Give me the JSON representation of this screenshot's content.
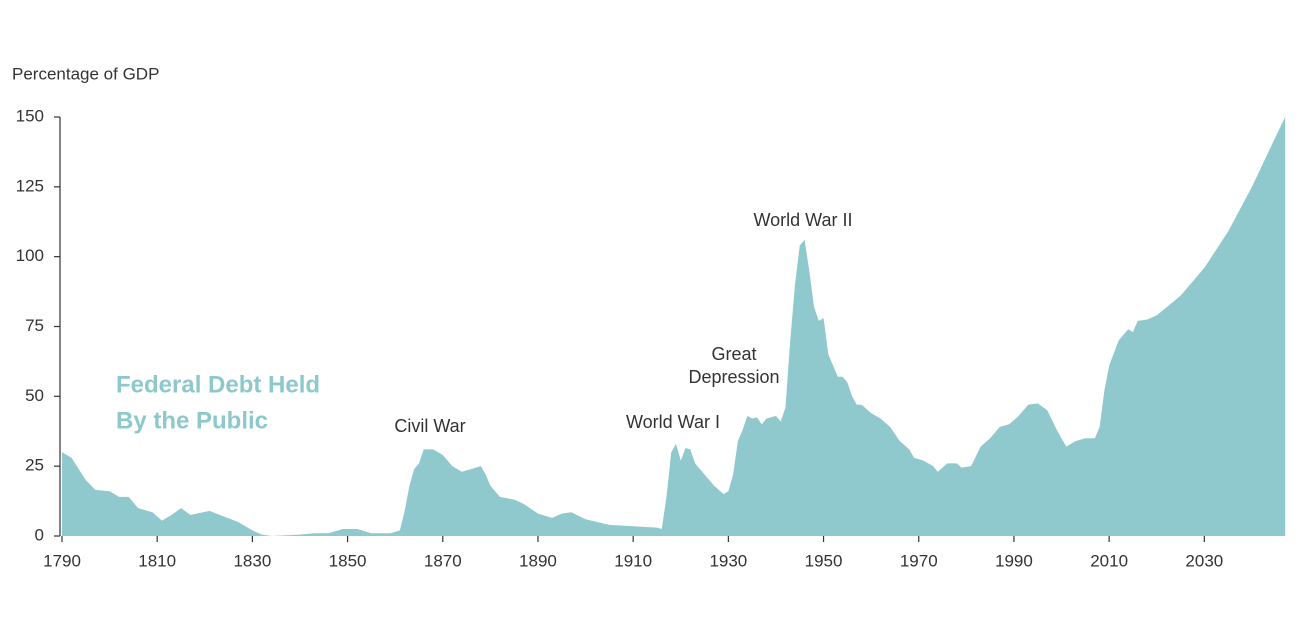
{
  "chart_data": {
    "type": "area",
    "y_axis_label": "Percentage of GDP",
    "label_lines": [
      "Federal Debt Held",
      "By the Public"
    ],
    "annotations": [
      [
        "Civil War"
      ],
      [
        "World War I"
      ],
      [
        "Great",
        "Depression"
      ],
      [
        "World War II"
      ]
    ],
    "color": "#8fc8cd",
    "label_color": "#8cc8cc",
    "x": [
      1790,
      1792,
      1795,
      1797,
      1800,
      1802,
      1804,
      1806,
      1809,
      1811,
      1813,
      1815,
      1817,
      1821,
      1824,
      1827,
      1830,
      1832,
      1834,
      1840,
      1843,
      1846,
      1849,
      1852,
      1855,
      1859,
      1861,
      1862,
      1863,
      1864,
      1865,
      1866,
      1868,
      1870,
      1872,
      1874,
      1876,
      1878,
      1879,
      1880,
      1882,
      1885,
      1887,
      1890,
      1893,
      1895,
      1897,
      1900,
      1905,
      1910,
      1915,
      1916,
      1917,
      1918,
      1919,
      1920,
      1921,
      1922,
      1923,
      1925,
      1927,
      1929,
      1930,
      1931,
      1932,
      1933,
      1934,
      1935,
      1936,
      1937,
      1938,
      1940,
      1941,
      1942,
      1943,
      1944,
      1945,
      1946,
      1947,
      1948,
      1949,
      1950,
      1951,
      1952,
      1953,
      1954,
      1955,
      1956,
      1957,
      1958,
      1960,
      1962,
      1964,
      1966,
      1968,
      1969,
      1971,
      1973,
      1974,
      1976,
      1978,
      1979,
      1981,
      1983,
      1985,
      1987,
      1989,
      1991,
      1993,
      1995,
      1997,
      1999,
      2001,
      2003,
      2005,
      2007,
      2008,
      2009,
      2010,
      2012,
      2014,
      2015,
      2016,
      2018,
      2020,
      2025,
      2030,
      2035,
      2040,
      2045,
      2047
    ],
    "values": [
      30,
      28,
      20,
      16.5,
      16,
      14,
      14,
      10,
      8.5,
      5.5,
      7.5,
      10,
      7.5,
      9,
      7,
      5,
      2,
      0.5,
      0,
      0.5,
      1,
      1,
      2.5,
      2.5,
      1,
      1,
      2,
      9,
      18,
      24,
      26,
      31,
      31,
      29,
      25,
      23,
      24,
      25,
      22,
      18,
      14,
      13,
      11.5,
      8,
      6.5,
      8,
      8.5,
      6,
      4,
      3.5,
      3,
      2.5,
      14,
      30,
      33,
      27,
      31.5,
      31,
      26,
      22,
      18,
      15,
      16,
      22,
      34,
      38,
      43,
      42,
      42.5,
      40,
      42,
      43,
      41,
      46,
      70,
      90,
      104,
      106,
      95,
      82,
      77,
      78,
      65,
      61,
      57,
      57,
      55,
      50,
      47,
      47,
      44,
      42,
      39,
      34,
      31,
      28,
      27,
      25,
      23,
      26,
      26,
      24.5,
      25,
      32,
      35,
      39,
      40,
      43,
      47,
      47.5,
      45,
      38,
      32,
      34,
      35,
      35,
      39,
      52,
      61,
      70,
      74,
      73,
      77,
      77.5,
      79,
      86,
      96,
      109,
      125,
      143,
      150
    ],
    "xlim": [
      1790,
      2048
    ],
    "xticks": [
      1790,
      1810,
      1830,
      1850,
      1870,
      1890,
      1910,
      1930,
      1950,
      1970,
      1990,
      2010,
      2030
    ],
    "ylim": [
      0,
      150
    ],
    "yticks": [
      0,
      25,
      50,
      75,
      100,
      125,
      150
    ]
  }
}
